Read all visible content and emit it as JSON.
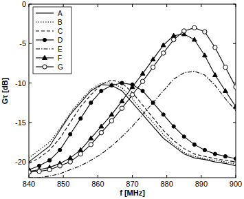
{
  "chart_data": {
    "type": "line",
    "x_label": "f [MHz]",
    "y_label": "Gτ [dB]",
    "x": [
      840,
      843,
      846,
      849,
      852,
      855,
      858,
      861,
      864,
      867,
      870,
      873,
      876,
      879,
      882,
      885,
      888,
      891,
      894,
      897,
      900
    ],
    "xlim": [
      840,
      900
    ],
    "xticks": [
      840,
      850,
      860,
      870,
      880,
      890,
      900
    ],
    "ylim": [
      -22,
      0
    ],
    "yticks": [
      -20,
      -15,
      -10,
      -5,
      0
    ],
    "grid": false,
    "legend": "upper-left",
    "series": [
      {
        "name": "A",
        "color": "#000000",
        "line_style": "solid",
        "marker": "none",
        "values": [
          -20,
          -19,
          -18,
          -16,
          -14,
          -12.5,
          -11,
          -10.2,
          -10.3,
          -11,
          -12.5,
          -14,
          -15.5,
          -17,
          -18,
          -19,
          -19.5,
          -19.7,
          -20,
          -20.2,
          -20.5
        ]
      },
      {
        "name": "B",
        "color": "#000000",
        "line_style": "dotted",
        "marker": "none",
        "values": [
          -19.5,
          -18.5,
          -17.5,
          -15.8,
          -13.8,
          -12.2,
          -10.8,
          -10,
          -10,
          -10.6,
          -12,
          -13.6,
          -15,
          -16.5,
          -17.8,
          -18.8,
          -19.3,
          -19.6,
          -19.8,
          -20,
          -20.3
        ]
      },
      {
        "name": "C",
        "color": "#000000",
        "line_style": "dashed",
        "marker": "none",
        "values": [
          -20.2,
          -19.5,
          -18.5,
          -17,
          -15,
          -13,
          -11.5,
          -10.2,
          -9.6,
          -10,
          -11.2,
          -12.8,
          -14.4,
          -16,
          -17.3,
          -18.3,
          -19,
          -19.3,
          -19.6,
          -19.8,
          -20
        ]
      },
      {
        "name": "D",
        "color": "#000000",
        "line_style": "solid",
        "marker": "circle",
        "values": [
          -21,
          -20.5,
          -19.8,
          -18.5,
          -16.5,
          -14.5,
          -12.5,
          -11,
          -10.3,
          -10,
          -10.2,
          -11,
          -12.5,
          -14,
          -15.5,
          -16.8,
          -17.8,
          -18.5,
          -19,
          -19.3,
          -19.6
        ]
      },
      {
        "name": "E",
        "color": "#000000",
        "line_style": "dashdot",
        "marker": "none",
        "values": [
          -22,
          -22,
          -21.8,
          -21.5,
          -21,
          -20.5,
          -19.8,
          -19,
          -18,
          -16.8,
          -15.5,
          -14,
          -12.5,
          -11,
          -9.5,
          -8.7,
          -8.5,
          -9,
          -10.3,
          -12,
          -13.5
        ]
      },
      {
        "name": "F",
        "color": "#000000",
        "line_style": "solid",
        "marker": "triangle",
        "values": [
          -21.2,
          -21,
          -20.7,
          -20.2,
          -19.5,
          -18.5,
          -17,
          -15.5,
          -14,
          -12.3,
          -10.5,
          -8.8,
          -7,
          -5.2,
          -4,
          -3.8,
          -4.5,
          -6.5,
          -9,
          -11,
          -13
        ]
      },
      {
        "name": "G",
        "color": "#000000",
        "line_style": "solid",
        "marker": "open-circle",
        "values": [
          -21.3,
          -21.2,
          -21,
          -20.5,
          -20,
          -19,
          -17.8,
          -16.3,
          -14.8,
          -13.2,
          -11.5,
          -9.8,
          -8,
          -6.2,
          -4.5,
          -3.4,
          -3,
          -3.5,
          -5.5,
          -8,
          -10.5
        ]
      }
    ]
  }
}
